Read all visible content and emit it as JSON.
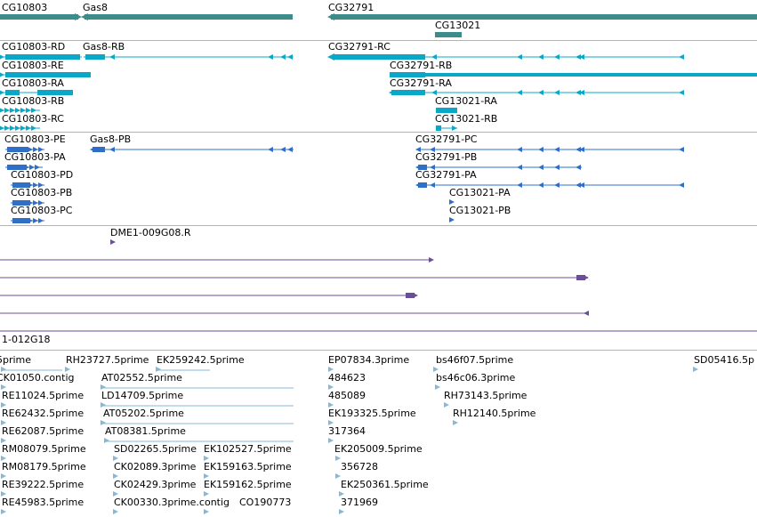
{
  "colors": {
    "gene": "#3d8b8b",
    "mrna": "#0aa8c8",
    "cds_transcript": "#2f6fc8",
    "clone": "#6a4e9a",
    "est": "#86b8d8",
    "separator": "#b4b4b4"
  },
  "tracks": {
    "genes": {
      "labels": [
        "CG10803",
        "Gas8",
        "CG32791",
        "CG13021"
      ]
    },
    "mrna": {
      "labels": [
        "CG10803-RD",
        "Gas8-RB",
        "CG32791-RC",
        "CG10803-RE",
        "CG32791-RB",
        "CG10803-RA",
        "CG32791-RA",
        "CG10803-RB",
        "CG13021-RA",
        "CG10803-RC",
        "CG13021-RB"
      ]
    },
    "cds": {
      "labels": [
        "CG10803-PE",
        "Gas8-PB",
        "CG32791-PC",
        "CG10803-PA",
        "CG32791-PB",
        "CG10803-PD",
        "CG32791-PA",
        "CG10803-PB",
        "CG13021-PA",
        "CG10803-PC",
        "CG13021-PB"
      ]
    },
    "clones": {
      "labels": [
        "DME1-009G08.R",
        "1-012G18"
      ]
    },
    "ests": {
      "labels": [
        "5prime",
        "RH23727.5prime",
        "EK259242.5prime",
        "EP07834.3prime",
        "bs46f07.5prime",
        "SD05416.5p",
        "CK01050.contig",
        "AT02552.5prime",
        "484623",
        "bs46c06.3prime",
        "RE11024.5prime",
        "LD14709.5prime",
        "485089",
        "RH73143.5prime",
        "RE62432.5prime",
        "AT05202.5prime",
        "EK193325.5prime",
        "RH12140.5prime",
        "RE62087.5prime",
        "AT08381.5prime",
        "317364",
        "RM08079.5prime",
        "SD02265.5prime",
        "EK102527.5prime",
        "EK205009.5prime",
        "RM08179.5prime",
        "CK02089.3prime",
        "EK159163.5prime",
        "356728",
        "RE39222.5prime",
        "CK02429.3prime",
        "EK159162.5prime",
        "EK250361.5prime",
        "RE45983.5prime",
        "CK00330.3prime.contig",
        "CO190773",
        "371969"
      ]
    }
  }
}
